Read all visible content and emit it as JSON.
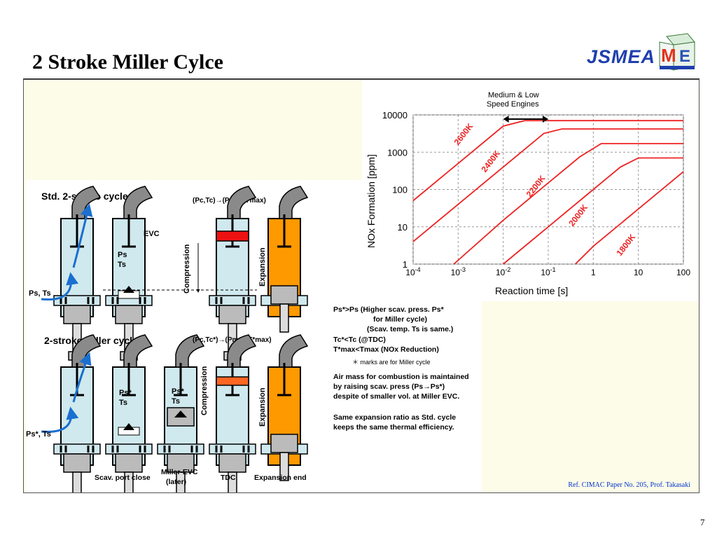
{
  "slide": {
    "title": "2 Stroke Miller Cylce",
    "page_number": "7",
    "logo_text": "JSMEA",
    "reference": "Ref. CIMAC Paper No. 205, Prof. Takasaki"
  },
  "diagram": {
    "std_cycle_title": "Std. 2-stroke cycle",
    "miller_cycle_title": "2-stroke Miller cycle",
    "evc_label": "EVC",
    "ps_label": "Ps",
    "ts_label": "Ts",
    "ps_ts_inlet": "Ps, Ts",
    "ps_star_label": "Ps*",
    "ps_star_ts_inlet": "Ps*, Ts",
    "std_tdc_state": "(Pc,Tc)→(Pmax,Tmax)",
    "miller_tdc_state": "(Pc,Tc*)→(Pmax,T*max)",
    "compression": "Compression",
    "expansion": "Expansion",
    "bottom_labels": [
      "Scav. port close",
      "Miller-EVC\n(later)",
      "TDC",
      "Expansion end"
    ]
  },
  "notes": {
    "line1": "Ps*>Ps (Higher scav. press. Ps*",
    "line2": "for Miller cycle)",
    "line3": "(Scav. temp. Ts is same.)",
    "line4": "Tc*<Tc (@TDC)",
    "line5": "T*max<Tmax (NOx Reduction)",
    "star_note": "＊ marks are for Miller cycle",
    "para2_1": "Air mass for combustion is maintained",
    "para2_2": "by raising scav. press (Ps→Ps*)",
    "para2_3": "despite of smaller vol. at Miller EVC.",
    "para3_1": "Same expansion ratio as Std. cycle",
    "para3_2": "keeps the same thermal efficiency."
  },
  "colors": {
    "cylinder_fill": "#cfe9ee",
    "exhaust_fill": "#ff9900",
    "pipe_gray": "#8a8a8a",
    "piston_red": "#ee1111",
    "piston_orange": "#ff6622",
    "curve_red": "#ee2222",
    "arrow_blue": "#1a6fd0",
    "title_logo_blue": "#1f3fae",
    "panel_bg": "#fdfce9"
  },
  "chart_data": {
    "type": "line",
    "xlabel": "Reaction time [s]",
    "ylabel": "NOx Formation [ppm]",
    "xscale": "log",
    "yscale": "log",
    "xlim": [
      0.0001,
      100
    ],
    "ylim": [
      1,
      10000
    ],
    "x_tick_labels": [
      "10-4",
      "10-3",
      "10-2",
      "10-1",
      "1",
      "10",
      "100"
    ],
    "y_tick_labels": [
      "1",
      "10",
      "100",
      "1000",
      "10000"
    ],
    "grid": true,
    "annotation": "Medium & Low\nSpeed Engines",
    "annotation_range": [
      0.01,
      0.1
    ],
    "series": [
      {
        "name": "2600K",
        "x": [
          0.0001,
          0.001,
          0.01,
          0.03,
          100
        ],
        "y": [
          50,
          500,
          5000,
          7000,
          7000
        ]
      },
      {
        "name": "2400K",
        "x": [
          0.0001,
          0.001,
          0.01,
          0.08,
          0.2,
          100
        ],
        "y": [
          4,
          40,
          400,
          3200,
          4200,
          4200
        ]
      },
      {
        "name": "2200K",
        "x": [
          0.0008,
          0.01,
          0.1,
          0.5,
          1.5,
          100
        ],
        "y": [
          1,
          15,
          150,
          750,
          1700,
          1700
        ]
      },
      {
        "name": "2000K",
        "x": [
          0.01,
          0.1,
          1,
          4,
          10,
          100
        ],
        "y": [
          1,
          10,
          100,
          400,
          700,
          700
        ]
      },
      {
        "name": "1800K",
        "x": [
          0.4,
          1,
          10,
          100
        ],
        "y": [
          1,
          3,
          30,
          300
        ]
      }
    ]
  }
}
